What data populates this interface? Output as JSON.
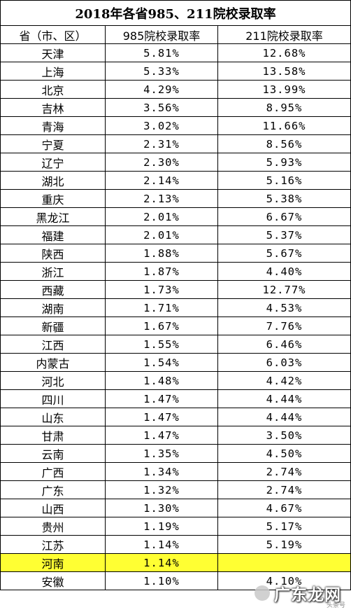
{
  "title": "2018年各省985、211院校录取率",
  "headers": [
    "省（市、区）",
    "985院校录取率",
    "211院校录取率"
  ],
  "rows": [
    [
      "天津",
      "5.81%",
      "12.68%"
    ],
    [
      "上海",
      "5.33%",
      "13.58%"
    ],
    [
      "北京",
      "4.29%",
      "13.99%"
    ],
    [
      "吉林",
      "3.56%",
      "8.95%"
    ],
    [
      "青海",
      "3.02%",
      "11.66%"
    ],
    [
      "宁夏",
      "2.31%",
      "8.56%"
    ],
    [
      "辽宁",
      "2.30%",
      "5.93%"
    ],
    [
      "湖北",
      "2.14%",
      "5.16%"
    ],
    [
      "重庆",
      "2.13%",
      "5.38%"
    ],
    [
      "黑龙江",
      "2.01%",
      "6.67%"
    ],
    [
      "福建",
      "2.01%",
      "5.37%"
    ],
    [
      "陕西",
      "1.88%",
      "5.67%"
    ],
    [
      "浙江",
      "1.87%",
      "4.40%"
    ],
    [
      "西藏",
      "1.73%",
      "12.77%"
    ],
    [
      "湖南",
      "1.71%",
      "4.53%"
    ],
    [
      "新疆",
      "1.67%",
      "7.76%"
    ],
    [
      "江西",
      "1.55%",
      "6.46%"
    ],
    [
      "内蒙古",
      "1.54%",
      "6.03%"
    ],
    [
      "河北",
      "1.48%",
      "4.42%"
    ],
    [
      "四川",
      "1.47%",
      "4.44%"
    ],
    [
      "山东",
      "1.47%",
      "4.44%"
    ],
    [
      "甘肃",
      "1.47%",
      "3.50%"
    ],
    [
      "云南",
      "1.35%",
      "4.50%"
    ],
    [
      "广西",
      "1.34%",
      "2.74%"
    ],
    [
      "广东",
      "1.32%",
      "2.74%"
    ],
    [
      "山西",
      "1.30%",
      "4.67%"
    ],
    [
      "贵州",
      "1.19%",
      "5.17%"
    ],
    [
      "江苏",
      "1.14%",
      "5.19%"
    ],
    [
      "河南",
      "1.14%",
      ""
    ],
    [
      "安徽",
      "1.10%",
      "4.10%"
    ]
  ],
  "highlight_row_index": 28,
  "highlight_color": "#ffff33",
  "watermark": {
    "text": "广东龙网",
    "sub": "头条号"
  }
}
